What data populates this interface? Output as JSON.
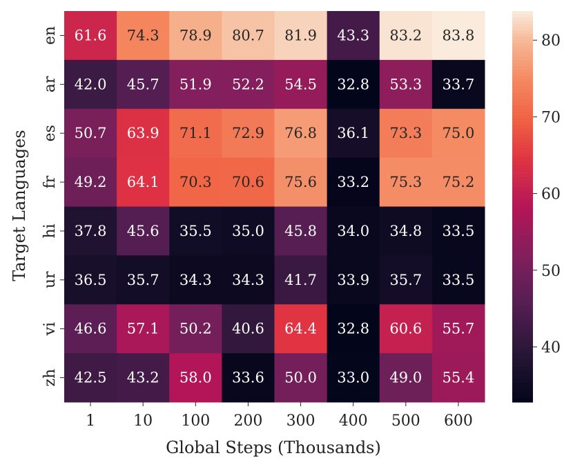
{
  "chart_data": {
    "type": "heatmap",
    "title": "",
    "xlabel": "Global Steps (Thousands)",
    "ylabel": "Target Languages",
    "x_categories": [
      "1",
      "10",
      "100",
      "200",
      "300",
      "400",
      "500",
      "600"
    ],
    "y_categories": [
      "en",
      "ar",
      "es",
      "fr",
      "hi",
      "ur",
      "vi",
      "zh"
    ],
    "values": [
      [
        61.6,
        74.3,
        78.9,
        80.7,
        81.9,
        43.3,
        83.2,
        83.8
      ],
      [
        42.0,
        45.7,
        51.9,
        52.2,
        54.5,
        32.8,
        53.3,
        33.7
      ],
      [
        50.7,
        63.9,
        71.1,
        72.9,
        76.8,
        36.1,
        73.3,
        75.0
      ],
      [
        49.2,
        64.1,
        70.3,
        70.6,
        75.6,
        33.2,
        75.3,
        75.2
      ],
      [
        37.8,
        45.6,
        35.5,
        35.0,
        45.8,
        34.0,
        34.8,
        33.5
      ],
      [
        36.5,
        35.7,
        34.3,
        34.3,
        41.7,
        33.9,
        35.7,
        33.5
      ],
      [
        46.6,
        57.1,
        50.2,
        40.6,
        64.4,
        32.8,
        60.6,
        55.7
      ],
      [
        42.5,
        43.2,
        58.0,
        33.6,
        50.0,
        33.0,
        49.0,
        55.4
      ]
    ],
    "value_range": [
      32.8,
      83.8
    ],
    "colorbar_ticks": [
      40,
      50,
      60,
      70,
      80
    ],
    "colormap": "rocket",
    "annotations": true,
    "grid": false
  }
}
